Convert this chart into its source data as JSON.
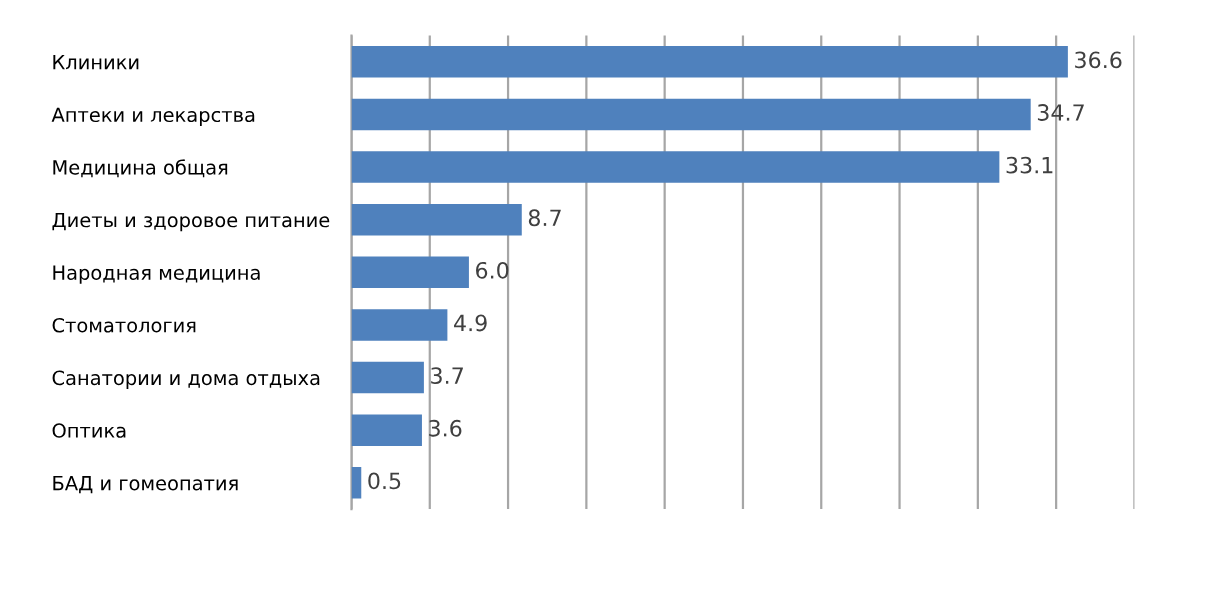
{
  "chart_data": {
    "type": "bar",
    "orientation": "horizontal",
    "categories": [
      "Клиники",
      "Аптеки и лекарства",
      "Медицина общая",
      "Диеты и здоровое питание",
      "Народная медицина",
      "Стоматология",
      "Санатории и дома отдыха",
      "Оптика",
      "БАД и гомеопатия"
    ],
    "values": [
      36.6,
      34.7,
      33.1,
      8.7,
      6.0,
      4.9,
      3.7,
      3.6,
      0.5
    ],
    "value_labels": [
      "36.6",
      "34.7",
      "33.1",
      "8.7",
      "6.0",
      "4.9",
      "3.7",
      "3.6",
      "0.5"
    ],
    "color": "#4f81bd",
    "xlim": [
      0,
      40
    ],
    "xticks": [
      {
        "value": 0,
        "label": null
      },
      {
        "value": 4,
        "label": null
      },
      {
        "value": 8,
        "label": null
      },
      {
        "value": 12,
        "label": null
      },
      {
        "value": 16,
        "label": null
      },
      {
        "value": 20,
        "label": null
      },
      {
        "value": 24,
        "label": null
      },
      {
        "value": 28,
        "label": null
      },
      {
        "value": 32,
        "label": null
      },
      {
        "value": 36,
        "label": null
      },
      {
        "value": 40,
        "label": null
      }
    ],
    "grid": "x",
    "tick_labels": "y"
  }
}
